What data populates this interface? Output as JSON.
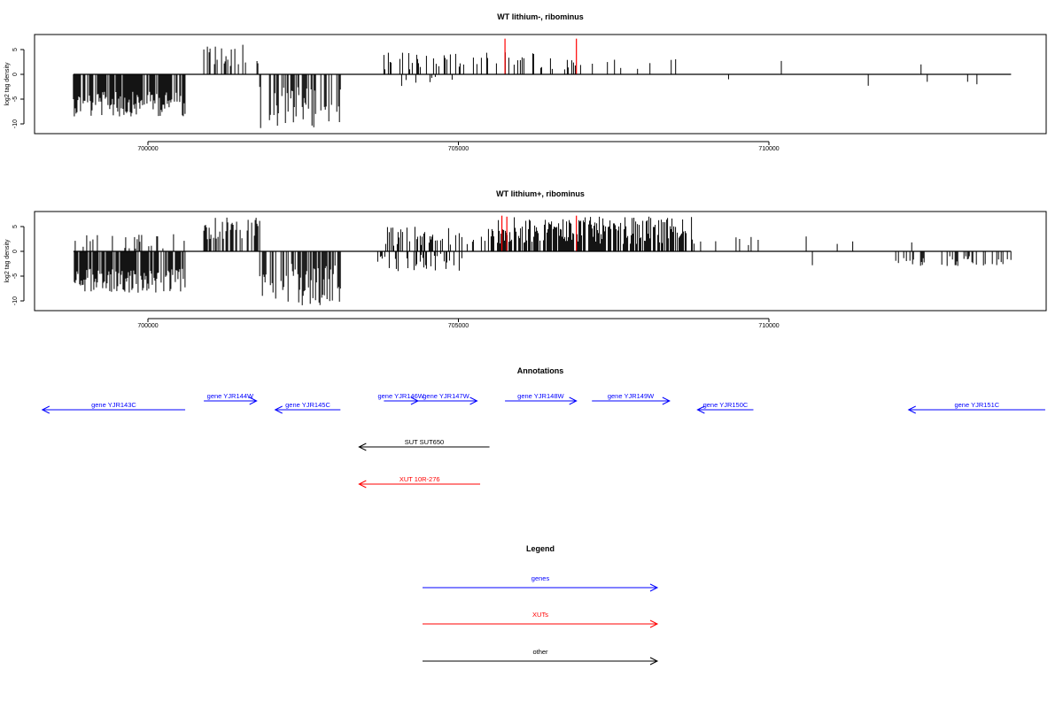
{
  "chart_data": [
    {
      "type": "bar",
      "title": "WT lithium-, ribominus",
      "ylabel": "log2 tag density",
      "xlim": [
        698700,
        714000
      ],
      "ylim": [
        -11.5,
        7.5
      ],
      "x_ticks": [
        700000,
        705000,
        710000
      ],
      "x_tick_labels": [
        "700000",
        "705000",
        "710000"
      ],
      "y_ticks": [
        -10,
        -5,
        0,
        5
      ],
      "y_tick_labels": [
        "-10",
        "-5",
        "0",
        "5"
      ],
      "segments": [
        {
          "strand": "minus",
          "x_start": 698800,
          "x_end": 700600,
          "min": 3.5,
          "max": 8.5,
          "density": 0.8
        },
        {
          "strand": "plus",
          "x_start": 700900,
          "x_end": 701800,
          "min": 1.5,
          "max": 6.0,
          "density": 0.35
        },
        {
          "strand": "minus",
          "x_start": 701800,
          "x_end": 703100,
          "min": 2.5,
          "max": 11.0,
          "density": 0.45
        },
        {
          "strand": "plus",
          "x_start": 703800,
          "x_end": 707000,
          "min": 1.0,
          "max": 4.5,
          "density": 0.25
        },
        {
          "strand": "minus",
          "x_start": 703900,
          "x_end": 705200,
          "min": 0.5,
          "max": 2.5,
          "density": 0.04
        },
        {
          "strand": "plus",
          "x_start": 707000,
          "x_end": 708500,
          "min": 1.0,
          "max": 3.5,
          "density": 0.07
        }
      ],
      "isolated_bars": [
        {
          "x": 709350,
          "y": -1.0
        },
        {
          "x": 710200,
          "y": 2.7
        },
        {
          "x": 711600,
          "y": -2.3
        },
        {
          "x": 712450,
          "y": 2.0
        },
        {
          "x": 712550,
          "y": -1.5
        },
        {
          "x": 713200,
          "y": -1.5
        },
        {
          "x": 713350,
          "y": -2.0
        }
      ],
      "highlight_bars": [
        {
          "x": 705750,
          "y": 7.2,
          "color": "#ff0000"
        },
        {
          "x": 706900,
          "y": 7.2,
          "color": "#ff0000"
        }
      ]
    },
    {
      "type": "bar",
      "title": "WT lithium+, ribominus",
      "ylabel": "log2 tag density",
      "xlim": [
        698700,
        714000
      ],
      "ylim": [
        -11.5,
        7.5
      ],
      "x_ticks": [
        700000,
        705000,
        710000
      ],
      "x_tick_labels": [
        "700000",
        "705000",
        "710000"
      ],
      "y_ticks": [
        -10,
        -5,
        0,
        5
      ],
      "y_tick_labels": [
        "-10",
        "-5",
        "0",
        "5"
      ],
      "segments": [
        {
          "strand": "minus",
          "x_start": 698800,
          "x_end": 700600,
          "min": 3.5,
          "max": 8.5,
          "density": 0.8
        },
        {
          "strand": "plus",
          "x_start": 698800,
          "x_end": 700600,
          "min": 0.5,
          "max": 3.5,
          "density": 0.15
        },
        {
          "strand": "plus",
          "x_start": 700900,
          "x_end": 701800,
          "min": 2.0,
          "max": 6.8,
          "density": 0.6
        },
        {
          "strand": "minus",
          "x_start": 701800,
          "x_end": 703100,
          "min": 2.5,
          "max": 11.0,
          "density": 0.55
        },
        {
          "strand": "minus",
          "x_start": 703700,
          "x_end": 705100,
          "min": 0.5,
          "max": 4.0,
          "density": 0.3
        },
        {
          "strand": "plus",
          "x_start": 703800,
          "x_end": 705600,
          "min": 1.0,
          "max": 5.0,
          "density": 0.35
        },
        {
          "strand": "plus",
          "x_start": 705600,
          "x_end": 708800,
          "min": 1.5,
          "max": 7.0,
          "density": 0.75
        },
        {
          "strand": "plus",
          "x_start": 708800,
          "x_end": 710500,
          "min": 0.5,
          "max": 3.0,
          "density": 0.08
        },
        {
          "strand": "minus",
          "x_start": 712000,
          "x_end": 713900,
          "min": 0.8,
          "max": 3.0,
          "density": 0.3
        }
      ],
      "isolated_bars": [
        {
          "x": 710600,
          "y": 3.0
        },
        {
          "x": 710700,
          "y": -2.8
        },
        {
          "x": 711100,
          "y": 1.5
        },
        {
          "x": 711350,
          "y": 2.0
        },
        {
          "x": 712300,
          "y": 1.8
        }
      ],
      "highlight_bars": [
        {
          "x": 705700,
          "y": 7.2,
          "color": "#ff0000"
        },
        {
          "x": 705780,
          "y": 7.0,
          "color": "#ff0000"
        },
        {
          "x": 706900,
          "y": 7.2,
          "color": "#ff0000"
        }
      ]
    }
  ],
  "annotations": {
    "title": "Annotations",
    "features": [
      {
        "label": "gene YJR143C",
        "start": 700600,
        "end": 698300,
        "track": 0,
        "color": "#0000ff"
      },
      {
        "label": "gene YJR144W",
        "start": 700900,
        "end": 701750,
        "track": 1,
        "color": "#0000ff"
      },
      {
        "label": "gene YJR145C",
        "start": 703100,
        "end": 702050,
        "track": 0,
        "color": "#0000ff"
      },
      {
        "label": "gene YJR146W",
        "start": 703800,
        "end": 704350,
        "track": 1,
        "color": "#0000ff"
      },
      {
        "label": "gene YJR147W",
        "start": 704300,
        "end": 705300,
        "track": 1,
        "color": "#0000ff"
      },
      {
        "label": "gene YJR148W",
        "start": 705750,
        "end": 706900,
        "track": 1,
        "color": "#0000ff"
      },
      {
        "label": "gene YJR149W",
        "start": 707150,
        "end": 708400,
        "track": 1,
        "color": "#0000ff"
      },
      {
        "label": "gene YJR150C",
        "start": 709750,
        "end": 708850,
        "track": 0,
        "color": "#0000ff"
      },
      {
        "label": "gene YJR151C",
        "start": 714450,
        "end": 712250,
        "track": 0,
        "color": "#0000ff"
      },
      {
        "label": "SUT SUT650",
        "start": 705500,
        "end": 703400,
        "track": 2,
        "color": "#000000"
      },
      {
        "label": "XUT 10R-276",
        "start": 705350,
        "end": 703400,
        "track": 3,
        "color": "#ff0000"
      }
    ]
  },
  "legend": {
    "title": "Legend",
    "items": [
      {
        "label": "genes",
        "color": "#0000ff"
      },
      {
        "label": "XUTs",
        "color": "#ff0000"
      },
      {
        "label": "other",
        "color": "#000000"
      }
    ]
  }
}
